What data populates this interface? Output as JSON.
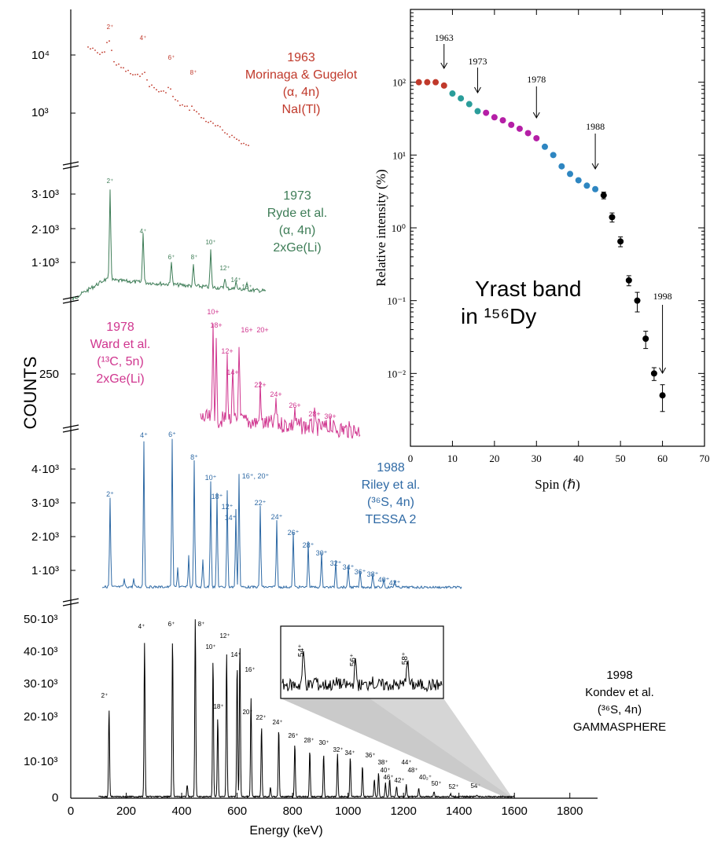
{
  "colors": {
    "c1963": "#c0392b",
    "c1973": "#3e7d57",
    "c1978": "#d0368f",
    "c1988": "#2f6aa5",
    "c1998": "#000000",
    "teal": "#2a9d9a",
    "magenta": "#b51fa6",
    "blue": "#2e86c1"
  },
  "figure": {
    "ylabel_counts": "COUNTS",
    "xlabel_energy": "Energy (keV)",
    "energy_ticks": [
      "0",
      "200",
      "400",
      "600",
      "800",
      "1000",
      "1200",
      "1400",
      "1600",
      "1800"
    ]
  },
  "panels": {
    "p1963": {
      "label": [
        "1963",
        "Morinaga & Gugelot",
        "(α, 4n)",
        "NaI(Tl)"
      ],
      "yticks": [
        "10⁴",
        "10³"
      ],
      "peaks": [
        "2⁺",
        "4⁺",
        "6⁺",
        "8⁺"
      ]
    },
    "p1973": {
      "label": [
        "1973",
        "Ryde et al.",
        "(α, 4n)",
        "2xGe(Li)"
      ],
      "yticks": [
        "3·10³",
        "2·10³",
        "1·10³"
      ],
      "peaks": [
        "2⁺",
        "4⁺",
        "6⁺",
        "8⁺",
        "10⁺",
        "12⁺",
        "14⁺",
        "16⁺"
      ]
    },
    "p1978": {
      "label": [
        "1978",
        "Ward et al.",
        "(¹³C, 5n)",
        "2xGe(Li)"
      ],
      "yticks": [
        "250"
      ],
      "peaks": [
        "10+",
        "18+",
        "12+",
        "14+",
        "16+",
        "20+",
        "22+",
        "24+",
        "26+",
        "28+",
        "30+"
      ]
    },
    "p1988": {
      "label": [
        "1988",
        "Riley et al.",
        "(³⁶S, 4n)",
        "TESSA 2"
      ],
      "yticks": [
        "4·10³",
        "3·10³",
        "2·10³",
        "1·10³"
      ],
      "peaks": [
        "2⁺",
        "4⁺",
        "6⁺",
        "8⁺",
        "10⁺",
        "18⁺",
        "12⁺",
        "14⁺",
        "16⁺, 20⁺",
        "22⁺",
        "24⁺",
        "26⁺",
        "28⁺",
        "30⁺",
        "32⁺",
        "34⁺",
        "36⁺",
        "38⁺",
        "40⁺",
        "42⁺"
      ]
    },
    "p1998": {
      "label": [
        "1998",
        "Kondev et al.",
        "(³⁶S, 4n)",
        "GAMMASPHERE"
      ],
      "yticks": [
        "50·10³",
        "40·10³",
        "30·10³",
        "20·10³",
        "10·10³",
        "0"
      ],
      "peaks": [
        "2⁺",
        "4⁺",
        "6⁺",
        "8⁺",
        "10⁺",
        "12⁺",
        "14⁺",
        "16⁺",
        "18⁺",
        "20⁺",
        "22⁺",
        "24⁺",
        "26⁺",
        "28⁺",
        "30⁺",
        "32⁺",
        "34⁺",
        "36⁺",
        "38⁺",
        "40⁺",
        "42⁺",
        "44⁺",
        "46⁺",
        "48⁺",
        "40₂⁺",
        "50⁺",
        "52⁺",
        "54⁺"
      ],
      "inset_peaks": [
        "54⁺",
        "56⁺",
        "58⁺"
      ]
    }
  },
  "chart_data": [
    {
      "type": "line",
      "xlabel": "Energy (keV)",
      "ylabel": "COUNTS",
      "xlim": [
        0,
        1900
      ],
      "panels": [
        {
          "name": "1998",
          "ylim": [
            0,
            55000
          ],
          "peaks": [
            {
              "label": "2⁺",
              "x": 138,
              "y": 25500
            },
            {
              "label": "4⁺",
              "x": 266,
              "y": 45000
            },
            {
              "label": "6⁺",
              "x": 367,
              "y": 46000
            },
            {
              "label": "8⁺",
              "x": 449,
              "y": 52000
            },
            {
              "label": "10⁺",
              "x": 513,
              "y": 40000
            },
            {
              "label": "18⁺",
              "x": 530,
              "y": 23000
            },
            {
              "label": "12⁺",
              "x": 562,
              "y": 42000
            },
            {
              "label": "14⁺",
              "x": 600,
              "y": 38500
            },
            {
              "label": "16⁺",
              "x": 610,
              "y": 44500
            },
            {
              "label": "20⁺",
              "x": 650,
              "y": 26500
            },
            {
              "label": "22⁺",
              "x": 688,
              "y": 20500
            },
            {
              "label": "24⁺",
              "x": 750,
              "y": 20000
            },
            {
              "label": "26⁺",
              "x": 808,
              "y": 15500
            },
            {
              "label": "28⁺",
              "x": 862,
              "y": 13500
            },
            {
              "label": "30⁺",
              "x": 912,
              "y": 12500
            },
            {
              "label": "32⁺",
              "x": 962,
              "y": 12500
            },
            {
              "label": "34⁺",
              "x": 1008,
              "y": 11500
            },
            {
              "label": "36⁺",
              "x": 1052,
              "y": 9000
            },
            {
              "label": "38⁺",
              "x": 1095,
              "y": 5000
            },
            {
              "label": "40⁺",
              "x": 1135,
              "y": 4000
            },
            {
              "label": "42⁺",
              "x": 1175,
              "y": 3000
            },
            {
              "label": "44⁺",
              "x": 1210,
              "y": 3500
            },
            {
              "label": "48⁺",
              "x": 1255,
              "y": 2500
            },
            {
              "label": "50⁺",
              "x": 1310,
              "y": 1500
            },
            {
              "label": "52⁺",
              "x": 1370,
              "y": 800
            },
            {
              "label": "54⁺",
              "x": 1465,
              "y": 600
            }
          ]
        }
      ]
    },
    {
      "type": "scatter",
      "xlabel": "Spin (ℏ)",
      "ylabel": "Relative intensity (%)",
      "xlim": [
        0,
        70
      ],
      "ylim": [
        0.001,
        1000
      ],
      "log_y": true,
      "xticks": [
        "0",
        "10",
        "20",
        "30",
        "40",
        "50",
        "60",
        "70"
      ],
      "yticks": [
        "10⁻²",
        "10⁻¹",
        "10⁰",
        "10¹",
        "10²"
      ],
      "title": "Yrast band",
      "title2": "in ¹⁵⁶Dy",
      "series": [
        {
          "name": "1963",
          "color": "#c0392b",
          "x": [
            2,
            4,
            6,
            8
          ],
          "y": [
            100,
            100,
            100,
            90
          ]
        },
        {
          "name": "1973",
          "color": "#2a9d9a",
          "x": [
            10,
            12,
            14,
            16
          ],
          "y": [
            70,
            60,
            50,
            40
          ]
        },
        {
          "name": "1978",
          "color": "#b51fa6",
          "x": [
            18,
            20,
            22,
            24,
            26,
            28,
            30
          ],
          "y": [
            38,
            33,
            30,
            26,
            23,
            20,
            17
          ]
        },
        {
          "name": "1988",
          "color": "#2e86c1",
          "x": [
            32,
            34,
            36,
            38,
            40,
            42,
            44
          ],
          "y": [
            13,
            10,
            7,
            5.5,
            4.5,
            3.8,
            3.4
          ]
        },
        {
          "name": "1998",
          "color": "#000000",
          "x": [
            46,
            48,
            50,
            52,
            54,
            56,
            58,
            60
          ],
          "y": [
            2.8,
            1.4,
            0.65,
            0.19,
            0.1,
            0.03,
            0.01,
            0.005
          ],
          "err": [
            0.3,
            0.2,
            0.1,
            0.03,
            0.03,
            0.008,
            0.002,
            0.002
          ]
        }
      ],
      "annotations": [
        {
          "text": "1963",
          "x": 8
        },
        {
          "text": "1973",
          "x": 16
        },
        {
          "text": "1978",
          "x": 30
        },
        {
          "text": "1988",
          "x": 44
        },
        {
          "text": "1998",
          "x": 60
        }
      ]
    }
  ]
}
